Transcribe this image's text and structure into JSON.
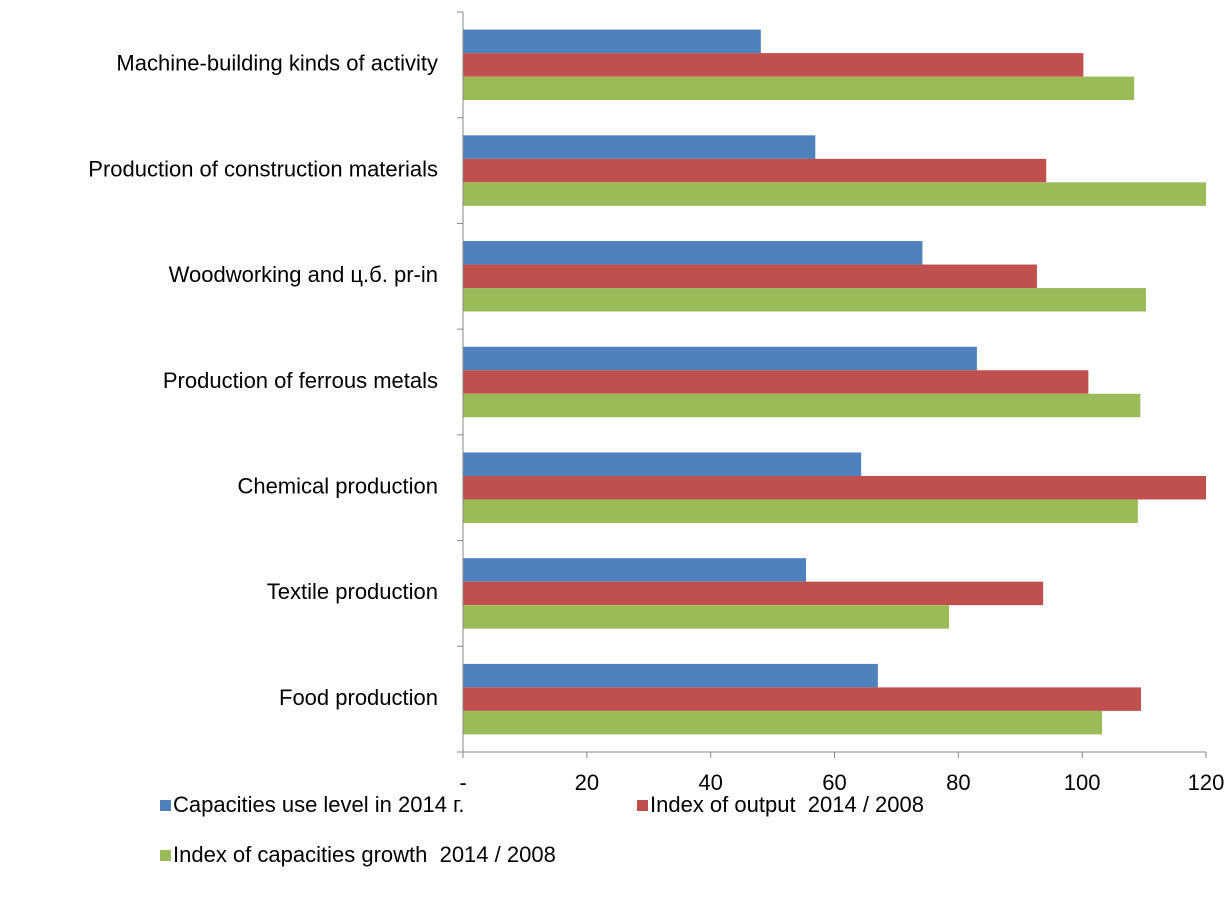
{
  "chart_data": {
    "type": "hbar",
    "categories": [
      "Food production",
      "Textile production",
      "Chemical production",
      "Production of ferrous metals",
      "Woodworking and ц.б. pr-in",
      "Production of construction materials",
      "Machine-building kinds of activity"
    ],
    "series": [
      {
        "name": "Capacities use level in 2014 г.",
        "color": "#4f81bd",
        "values": [
          67.0,
          55.4,
          64.3,
          83.0,
          74.2,
          56.9,
          48.1
        ]
      },
      {
        "name": "Index of output  2014 / 2008",
        "color": "#c0504d",
        "values": [
          109.5,
          93.7,
          120,
          101,
          92.7,
          94.2,
          100.2
        ]
      },
      {
        "name": "Index of capacities growth  2014 / 2008",
        "color": "#9bbb59",
        "values": [
          103.2,
          78.5,
          109,
          109.4,
          110.3,
          120,
          108.4
        ]
      }
    ],
    "xlim": [
      0,
      120
    ],
    "xticks": [
      {
        "value": 0,
        "label": "-"
      },
      20,
      40,
      60,
      80,
      100,
      120
    ],
    "legend": "bottom"
  }
}
